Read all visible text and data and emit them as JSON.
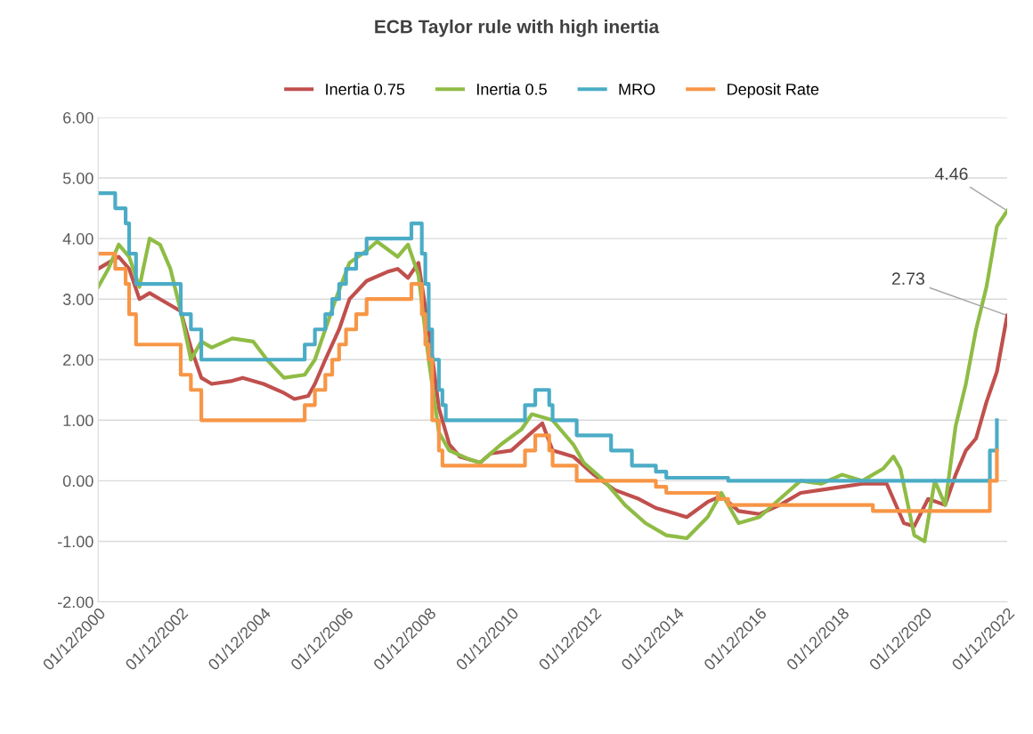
{
  "chart_data": {
    "type": "line",
    "title": "ECB Taylor rule with high inertia",
    "legend": "top",
    "grid": "y",
    "line_style": "solid",
    "marker": "none",
    "xlim": [
      "2000-12-01",
      "2022-12-01"
    ],
    "xticks": [
      {
        "value": "2000-12-01",
        "label": "01/12/2000"
      },
      {
        "value": "2002-12-01",
        "label": "01/12/2002"
      },
      {
        "value": "2004-12-01",
        "label": "01/12/2004"
      },
      {
        "value": "2006-12-01",
        "label": "01/12/2006"
      },
      {
        "value": "2008-12-01",
        "label": "01/12/2008"
      },
      {
        "value": "2010-12-01",
        "label": "01/12/2010"
      },
      {
        "value": "2012-12-01",
        "label": "01/12/2012"
      },
      {
        "value": "2014-12-01",
        "label": "01/12/2014"
      },
      {
        "value": "2016-12-01",
        "label": "01/12/2016"
      },
      {
        "value": "2018-12-01",
        "label": "01/12/2018"
      },
      {
        "value": "2020-12-01",
        "label": "01/12/2020"
      },
      {
        "value": "2022-12-01",
        "label": "01/12/2022"
      }
    ],
    "ylim": [
      -2,
      6
    ],
    "yticks": [
      {
        "value": -2,
        "label": "-2.00"
      },
      {
        "value": -1,
        "label": "-1.00"
      },
      {
        "value": 0,
        "label": "0.00"
      },
      {
        "value": 1,
        "label": "1.00"
      },
      {
        "value": 2,
        "label": "2.00"
      },
      {
        "value": 3,
        "label": "3.00"
      },
      {
        "value": 4,
        "label": "4.00"
      },
      {
        "value": 5,
        "label": "5.00"
      },
      {
        "value": 6,
        "label": "6.00"
      }
    ],
    "series": [
      {
        "name": "Inertia 0.75",
        "color": "#c0504d",
        "x": [
          "2000-12-01",
          "2001-03-01",
          "2001-06-01",
          "2001-09-01",
          "2001-12-01",
          "2002-03-01",
          "2002-06-01",
          "2002-09-01",
          "2002-12-01",
          "2003-03-01",
          "2003-06-01",
          "2003-09-01",
          "2004-03-01",
          "2004-06-01",
          "2004-12-01",
          "2005-06-01",
          "2005-09-01",
          "2006-01-01",
          "2006-03-01",
          "2006-06-01",
          "2006-10-01",
          "2007-01-01",
          "2007-06-01",
          "2007-12-01",
          "2008-03-01",
          "2008-06-01",
          "2008-09-01",
          "2008-12-01",
          "2009-03-01",
          "2009-06-01",
          "2009-09-01",
          "2010-03-01",
          "2010-06-01",
          "2010-12-01",
          "2011-06-01",
          "2011-09-01",
          "2011-12-01",
          "2012-06-01",
          "2012-12-01",
          "2013-06-01",
          "2014-01-01",
          "2014-06-01",
          "2014-12-01",
          "2015-03-01",
          "2015-09-01",
          "2016-01-01",
          "2016-06-01",
          "2016-12-01",
          "2017-06-01",
          "2017-12-01",
          "2018-06-01",
          "2018-12-01",
          "2019-06-01",
          "2020-01-01",
          "2020-06-01",
          "2020-09-01",
          "2021-01-01",
          "2021-06-01",
          "2021-09-01",
          "2021-12-01",
          "2022-03-01",
          "2022-06-01",
          "2022-09-01",
          "2022-12-01"
        ],
        "values": [
          3.5,
          3.6,
          3.7,
          3.5,
          3.0,
          3.1,
          3.0,
          2.9,
          2.8,
          2.2,
          1.7,
          1.6,
          1.65,
          1.7,
          1.6,
          1.45,
          1.35,
          1.4,
          1.6,
          2.0,
          2.5,
          3.0,
          3.3,
          3.45,
          3.5,
          3.35,
          3.6,
          2.5,
          1.2,
          0.6,
          0.4,
          0.3,
          0.45,
          0.5,
          0.8,
          0.95,
          0.5,
          0.4,
          0.1,
          -0.15,
          -0.3,
          -0.45,
          -0.55,
          -0.6,
          -0.35,
          -0.25,
          -0.5,
          -0.55,
          -0.4,
          -0.2,
          -0.15,
          -0.1,
          -0.05,
          -0.05,
          -0.7,
          -0.75,
          -0.3,
          -0.4,
          0.1,
          0.5,
          0.7,
          1.3,
          1.8,
          2.73
        ]
      },
      {
        "name": "Inertia 0.5",
        "color": "#8fbc45",
        "x": [
          "2000-12-01",
          "2001-03-01",
          "2001-06-01",
          "2001-09-01",
          "2001-12-01",
          "2002-03-01",
          "2002-06-01",
          "2002-09-01",
          "2002-12-01",
          "2003-03-01",
          "2003-06-01",
          "2003-09-01",
          "2004-03-01",
          "2004-09-01",
          "2005-01-01",
          "2005-06-01",
          "2005-12-01",
          "2006-03-01",
          "2006-06-01",
          "2006-09-01",
          "2007-01-01",
          "2007-06-01",
          "2007-09-01",
          "2008-03-01",
          "2008-06-01",
          "2008-09-01",
          "2008-12-01",
          "2009-03-01",
          "2009-06-01",
          "2009-12-01",
          "2010-03-01",
          "2010-09-01",
          "2011-03-01",
          "2011-06-01",
          "2011-12-01",
          "2012-06-01",
          "2012-09-01",
          "2013-03-01",
          "2013-09-01",
          "2014-03-01",
          "2014-09-01",
          "2015-03-01",
          "2015-09-01",
          "2016-01-01",
          "2016-06-01",
          "2016-12-01",
          "2017-06-01",
          "2017-12-01",
          "2018-06-01",
          "2018-12-01",
          "2019-06-01",
          "2019-12-01",
          "2020-03-01",
          "2020-05-01",
          "2020-09-01",
          "2020-12-01",
          "2021-03-01",
          "2021-06-01",
          "2021-09-01",
          "2021-12-01",
          "2022-03-01",
          "2022-06-01",
          "2022-09-01",
          "2022-12-01"
        ],
        "values": [
          3.2,
          3.5,
          3.9,
          3.7,
          3.2,
          4.0,
          3.9,
          3.5,
          2.8,
          2.0,
          2.3,
          2.2,
          2.35,
          2.3,
          2.0,
          1.7,
          1.75,
          2.0,
          2.5,
          3.0,
          3.6,
          3.8,
          3.95,
          3.7,
          3.9,
          3.4,
          2.0,
          0.8,
          0.5,
          0.35,
          0.3,
          0.6,
          0.85,
          1.1,
          1.0,
          0.6,
          0.3,
          0.0,
          -0.4,
          -0.7,
          -0.9,
          -0.95,
          -0.6,
          -0.2,
          -0.7,
          -0.6,
          -0.3,
          0.0,
          -0.05,
          0.1,
          0.0,
          0.2,
          0.4,
          0.2,
          -0.9,
          -1.0,
          0.0,
          -0.4,
          0.9,
          1.6,
          2.5,
          3.2,
          4.2,
          4.46
        ]
      },
      {
        "name": "MRO",
        "type": "step",
        "color": "#4bacc6",
        "x": [
          "2000-12-01",
          "2001-05-01",
          "2001-08-01",
          "2001-09-01",
          "2001-11-01",
          "2002-12-01",
          "2003-03-01",
          "2003-06-01",
          "2005-12-01",
          "2006-03-01",
          "2006-06-01",
          "2006-08-01",
          "2006-10-01",
          "2006-12-01",
          "2007-03-01",
          "2007-06-01",
          "2008-07-01",
          "2008-10-01",
          "2008-11-01",
          "2008-12-01",
          "2009-01-01",
          "2009-03-01",
          "2009-04-01",
          "2009-05-01",
          "2011-04-01",
          "2011-07-01",
          "2011-11-01",
          "2011-12-01",
          "2012-07-01",
          "2013-05-01",
          "2013-11-01",
          "2014-06-01",
          "2014-09-01",
          "2016-03-01",
          "2022-07-01",
          "2022-09-01"
        ],
        "values": [
          4.75,
          4.5,
          4.25,
          3.75,
          3.25,
          2.75,
          2.5,
          2.0,
          2.25,
          2.5,
          2.75,
          3.0,
          3.25,
          3.5,
          3.75,
          4.0,
          4.25,
          3.75,
          3.25,
          2.5,
          2.0,
          1.5,
          1.25,
          1.0,
          1.25,
          1.5,
          1.25,
          1.0,
          0.75,
          0.5,
          0.25,
          0.15,
          0.05,
          0.0,
          0.5,
          1.0
        ]
      },
      {
        "name": "Deposit Rate",
        "type": "step",
        "color": "#f79646",
        "x": [
          "2000-12-01",
          "2001-05-01",
          "2001-08-01",
          "2001-09-01",
          "2001-11-01",
          "2002-12-01",
          "2003-03-01",
          "2003-06-01",
          "2005-12-01",
          "2006-03-01",
          "2006-06-01",
          "2006-08-01",
          "2006-10-01",
          "2006-12-01",
          "2007-03-01",
          "2007-06-01",
          "2008-07-01",
          "2008-10-01",
          "2008-11-01",
          "2008-12-01",
          "2009-01-01",
          "2009-03-01",
          "2009-04-01",
          "2011-04-01",
          "2011-07-01",
          "2011-11-01",
          "2011-12-01",
          "2012-07-01",
          "2014-06-01",
          "2014-09-01",
          "2015-12-01",
          "2016-03-01",
          "2019-09-01",
          "2022-07-01",
          "2022-09-01"
        ],
        "values": [
          3.75,
          3.5,
          3.25,
          2.75,
          2.25,
          1.75,
          1.5,
          1.0,
          1.25,
          1.5,
          1.75,
          2.0,
          2.25,
          2.5,
          2.75,
          3.0,
          3.25,
          2.75,
          2.25,
          2.0,
          1.0,
          0.5,
          0.25,
          0.5,
          0.75,
          0.5,
          0.25,
          0.0,
          -0.1,
          -0.2,
          -0.3,
          -0.4,
          -0.5,
          0.0,
          0.5
        ]
      }
    ],
    "annotations": [
      {
        "text": "4.46",
        "x": "2022-12-01",
        "y": 4.46
      },
      {
        "text": "2.73",
        "x": "2022-12-01",
        "y": 2.73
      }
    ]
  }
}
